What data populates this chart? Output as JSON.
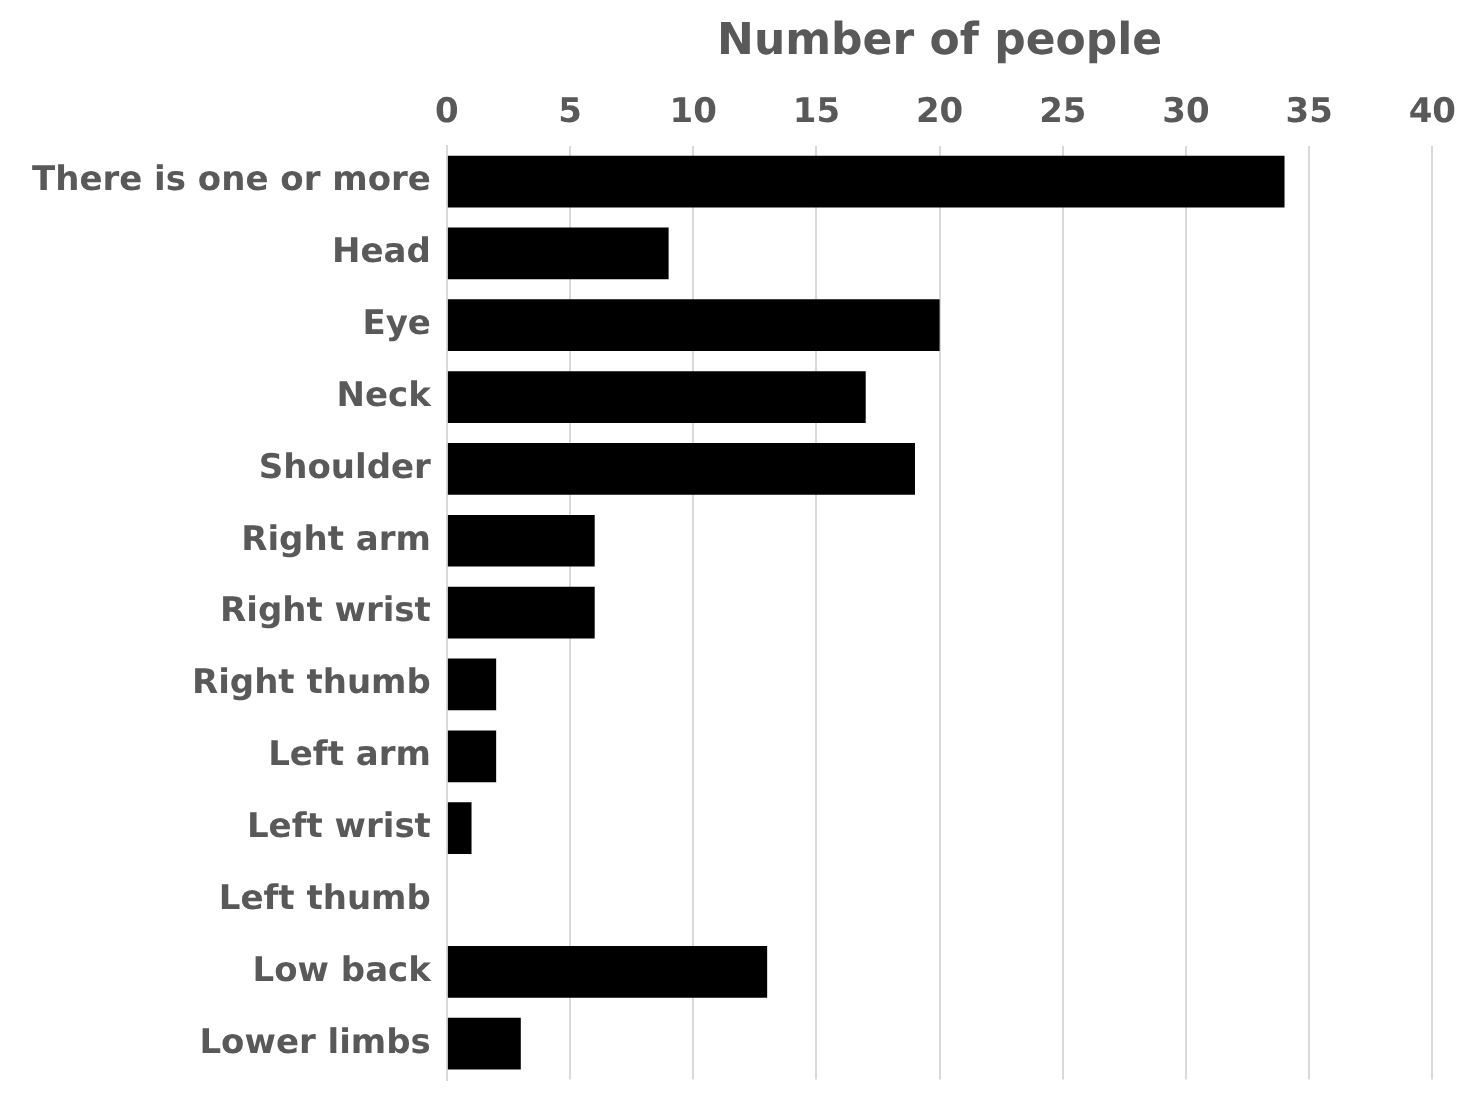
{
  "chart_data": {
    "type": "bar",
    "orientation": "horizontal",
    "xlabel": "Number of people",
    "categories": [
      "There is one or more",
      "Head",
      "Eye",
      "Neck",
      "Shoulder",
      "Right arm",
      "Right wrist",
      "Right thumb",
      "Left arm",
      "Left wrist",
      "Left thumb",
      "Low back",
      "Lower limbs"
    ],
    "values": [
      34,
      9,
      20,
      17,
      19,
      6,
      6,
      2,
      2,
      1,
      0,
      13,
      3
    ],
    "color": "#000000",
    "xlim": [
      0,
      40
    ],
    "xticks": [
      0,
      5,
      10,
      15,
      20,
      25,
      30,
      35,
      40
    ],
    "grid": "x",
    "legend": false
  }
}
